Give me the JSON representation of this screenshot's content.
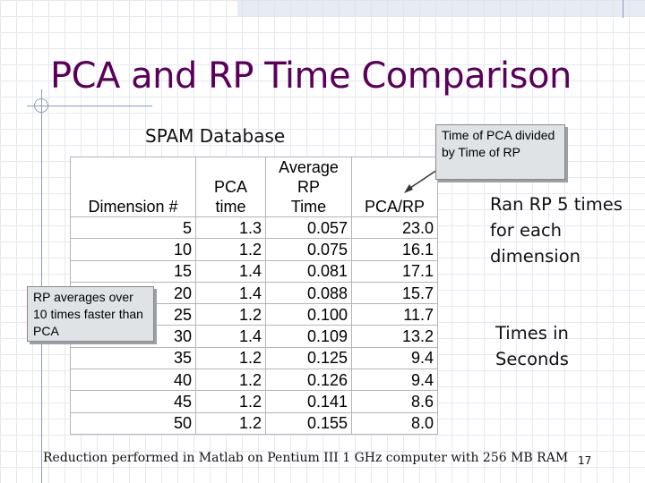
{
  "slide": {
    "title": "PCA and RP Time Comparison",
    "subtitle": "SPAM Database",
    "page_number": "17",
    "footer": "Reduction performed in Matlab on Pentium III 1 GHz computer with 256 MB RAM"
  },
  "callouts": {
    "top": "Time of PCA divided by Time of RP",
    "left": "RP averages over 10 times faster than PCA"
  },
  "notes": {
    "ran": "Ran RP 5 times for each dimension",
    "times": "Times in Seconds"
  },
  "table": {
    "headers": {
      "dimension": [
        "Dimension #"
      ],
      "pca": [
        "PCA",
        "time"
      ],
      "rp": [
        "Average",
        "RP",
        "Time"
      ],
      "ratio": [
        "PCA/RP"
      ]
    },
    "rows": [
      [
        "5",
        "1.3",
        "0.057",
        "23.0"
      ],
      [
        "10",
        "1.2",
        "0.075",
        "16.1"
      ],
      [
        "15",
        "1.4",
        "0.081",
        "17.1"
      ],
      [
        "20",
        "1.4",
        "0.088",
        "15.7"
      ],
      [
        "25",
        "1.2",
        "0.100",
        "11.7"
      ],
      [
        "30",
        "1.4",
        "0.109",
        "13.2"
      ],
      [
        "35",
        "1.2",
        "0.125",
        "9.4"
      ],
      [
        "40",
        "1.2",
        "0.126",
        "9.4"
      ],
      [
        "45",
        "1.2",
        "0.141",
        "8.6"
      ],
      [
        "50",
        "1.2",
        "0.155",
        "8.0"
      ]
    ]
  }
}
